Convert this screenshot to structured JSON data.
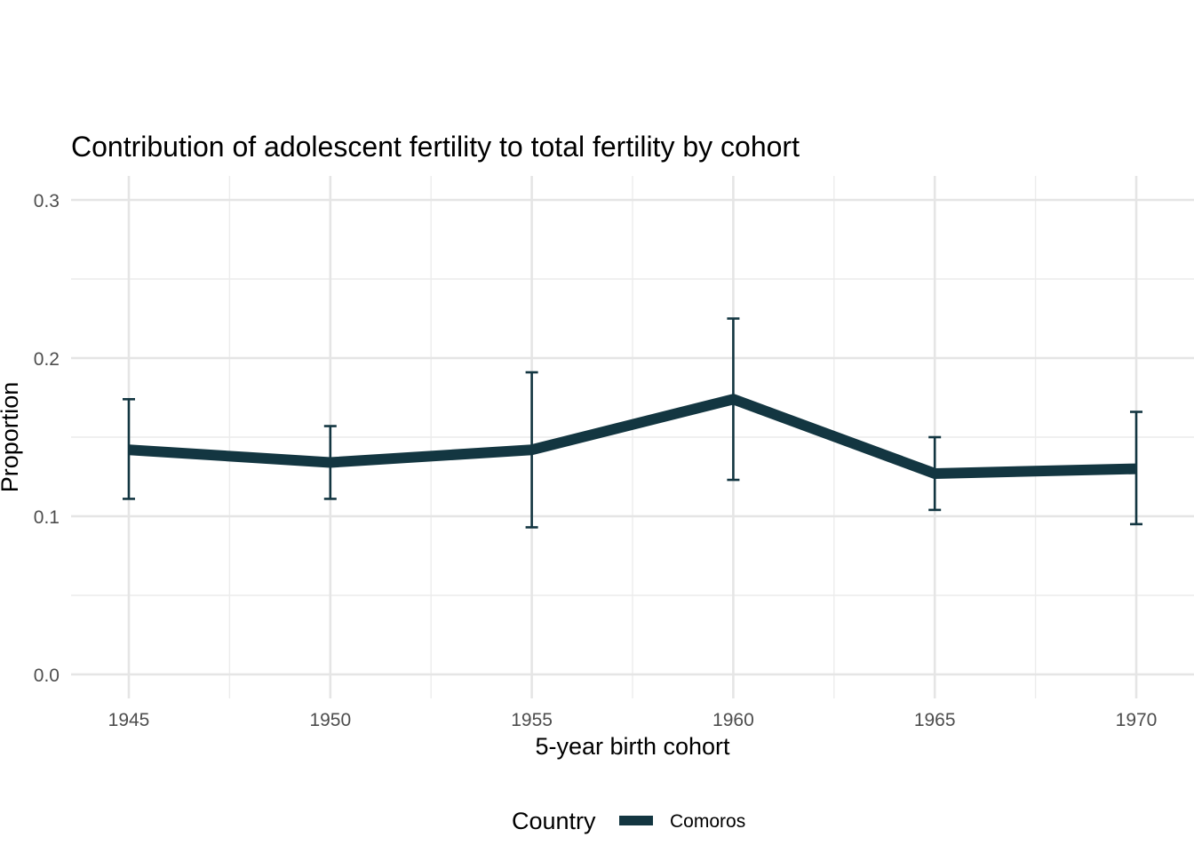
{
  "chart_data": {
    "type": "line",
    "title": "Contribution of adolescent fertility to total fertility by cohort",
    "xlabel": "5-year birth cohort",
    "ylabel": "Proportion",
    "xlim": [
      1944,
      1971
    ],
    "ylim": [
      0,
      0.3
    ],
    "x": [
      1945,
      1950,
      1955,
      1960,
      1965,
      1970
    ],
    "x_ticks": [
      "1945",
      "1950",
      "1955",
      "1960",
      "1965",
      "1970"
    ],
    "y_ticks": [
      "0.0",
      "0.1",
      "0.2",
      "0.3"
    ],
    "grid": true,
    "legend": {
      "title": "Country",
      "position": "bottom"
    },
    "series": [
      {
        "name": "Comoros",
        "color": "#133641",
        "values": [
          0.142,
          0.134,
          0.142,
          0.174,
          0.127,
          0.13
        ],
        "lower": [
          0.111,
          0.111,
          0.093,
          0.123,
          0.104,
          0.095
        ],
        "upper": [
          0.174,
          0.157,
          0.191,
          0.225,
          0.15,
          0.166
        ]
      }
    ]
  }
}
